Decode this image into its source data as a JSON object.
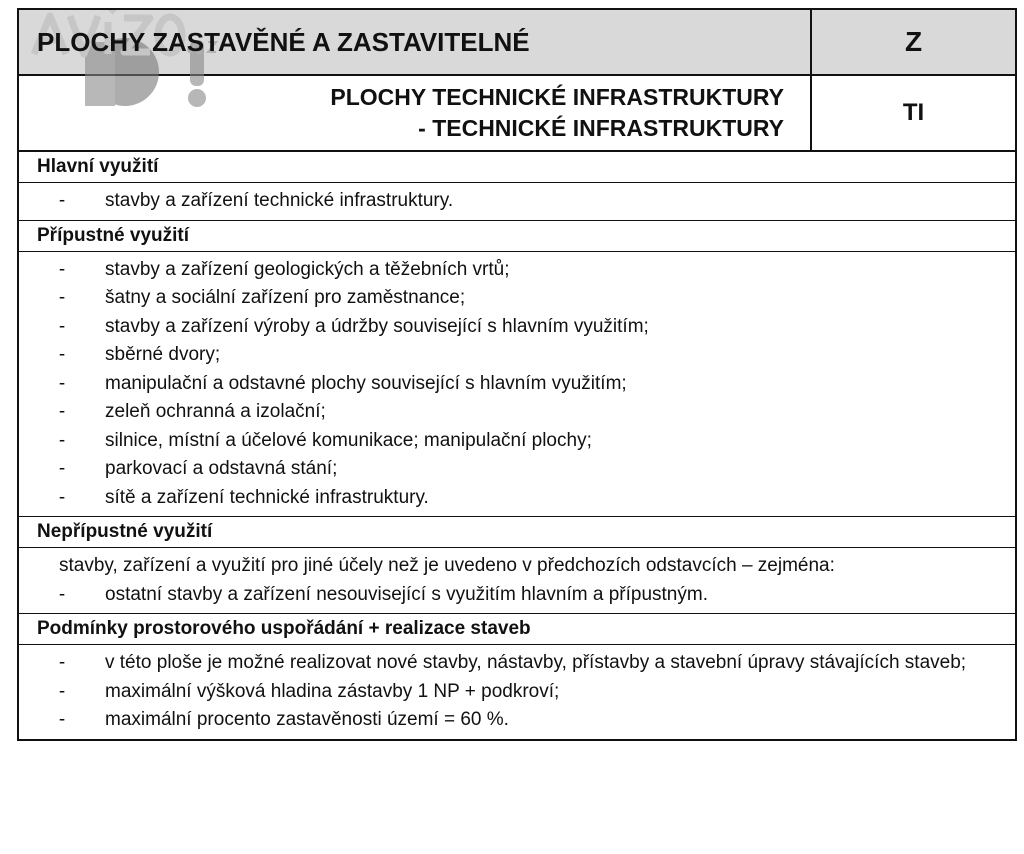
{
  "header": {
    "title": "PLOCHY ZASTAVĚNÉ A ZASTAVITELNÉ",
    "code": "Z",
    "subtitle_line1": "PLOCHY TECHNICKÉ INFRASTRUKTURY",
    "subtitle_line2": "- TECHNICKÉ INFRASTRUKTURY",
    "subcode": "TI"
  },
  "watermark": {
    "text": "AVÍZO.cz BO!"
  },
  "sections": [
    {
      "title": "Hlavní využití",
      "items": [
        "stavby a zařízení technické infrastruktury."
      ]
    },
    {
      "title": "Přípustné využití",
      "items": [
        "stavby a zařízení geologických a těžebních vrtů;",
        "šatny a sociální zařízení pro zaměstnance;",
        "stavby a zařízení výroby a údržby související s hlavním využitím;",
        "sběrné dvory;",
        "manipulační a odstavné plochy související s hlavním využitím;",
        "zeleň ochranná a izolační;",
        "silnice, místní a účelové komunikace; manipulační plochy;",
        "parkovací a odstavná stání;",
        "sítě a zařízení technické infrastruktury."
      ]
    },
    {
      "title": "Nepřípustné využití",
      "paragraph": "stavby, zařízení a využití pro jiné účely než je uvedeno v předchozích odstavcích – zejména:",
      "items": [
        "ostatní stavby a zařízení nesouvisející s využitím hlavním a přípustným."
      ]
    },
    {
      "title": "Podmínky prostorového uspořádání + realizace staveb",
      "items": [
        "v této ploše je možné realizovat nové stavby, nástavby, přístavby a stavební úpravy stávajících staveb;",
        "maximální výšková hladina zástavby 1 NP + podkroví;",
        "maximální procento zastavěnosti území = 60 %."
      ]
    }
  ]
}
